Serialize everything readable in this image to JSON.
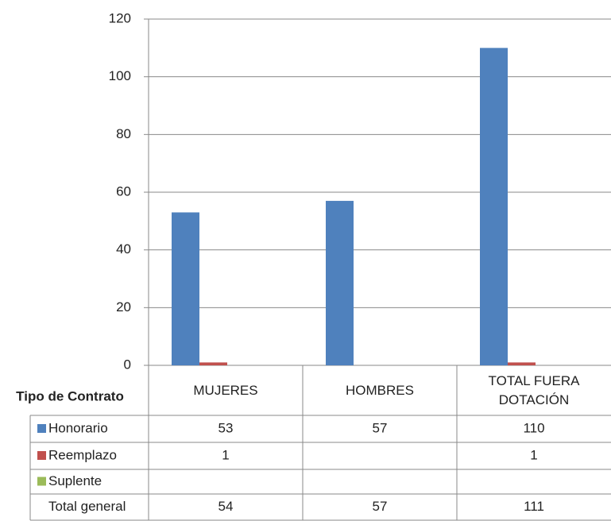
{
  "chart_data": {
    "type": "bar",
    "table_title": "Tipo de Contrato",
    "categories": [
      "MUJERES",
      "HOMBRES",
      "TOTAL FUERA DOTACIÓN"
    ],
    "series": [
      {
        "name": "Honorario",
        "color": "#4f81bd",
        "values": [
          53,
          57,
          110
        ]
      },
      {
        "name": "Reemplazo",
        "color": "#c0504d",
        "values": [
          1,
          null,
          1
        ]
      },
      {
        "name": "Suplente",
        "color": "#9bbb59",
        "values": [
          null,
          null,
          null
        ]
      }
    ],
    "total_row": {
      "name": "Total general",
      "values": [
        54,
        57,
        111
      ]
    },
    "ylim": [
      0,
      120
    ],
    "yticks": [
      0,
      20,
      40,
      60,
      80,
      100,
      120
    ],
    "grid": true
  }
}
